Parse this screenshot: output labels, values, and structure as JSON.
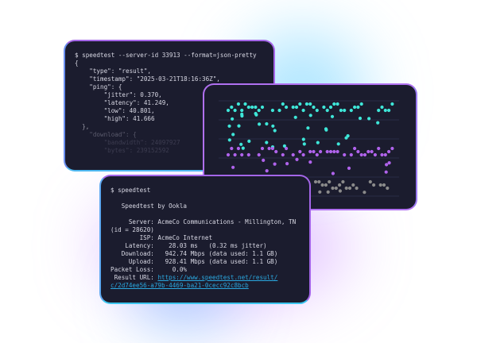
{
  "json_terminal": {
    "lines": [
      "$ speedtest --server-id 33913 --format=json-pretty",
      "{",
      "    \"type\": \"result\",",
      "    \"timestamp\": \"2025-03-21T18:16:36Z\",",
      "    \"ping\": {",
      "        \"jitter\": 0.370,",
      "        \"latency\": 41.249,",
      "        \"low\": 40.801,",
      "        \"high\": 41.666",
      "  },",
      "    \"download\": {",
      "        \"bandwidth\": 24097927",
      "        \"bytes\": 239152592"
    ]
  },
  "chart": {
    "colors": {
      "upper": "#3ee6d8",
      "middle": "#b063ec",
      "lower": "#8a8a8a",
      "grid": "#2a2c45"
    }
  },
  "cli_terminal": {
    "command": "$ speedtest",
    "heading": "   Speedtest by Ookla",
    "lines": [
      "     Server: AcmeCo Communications - Millington, TN",
      "(id = 28620)",
      "        ISP: AcmeCo Internet",
      "    Latency:    28.03 ms   (0.32 ms jitter)",
      "   Download:   942.74 Mbps (data used: 1.1 GB)",
      "     Upload:   928.41 Mbps (data used: 1.1 GB)",
      "Packet Loss:     0.0%"
    ],
    "result_label": " Result URL: ",
    "result_url_1": "https://www.speedtest.net/result/",
    "result_url_2": "c/2d74ee56-a79b-4469-ba21-0cecc92c8bcb"
  }
}
